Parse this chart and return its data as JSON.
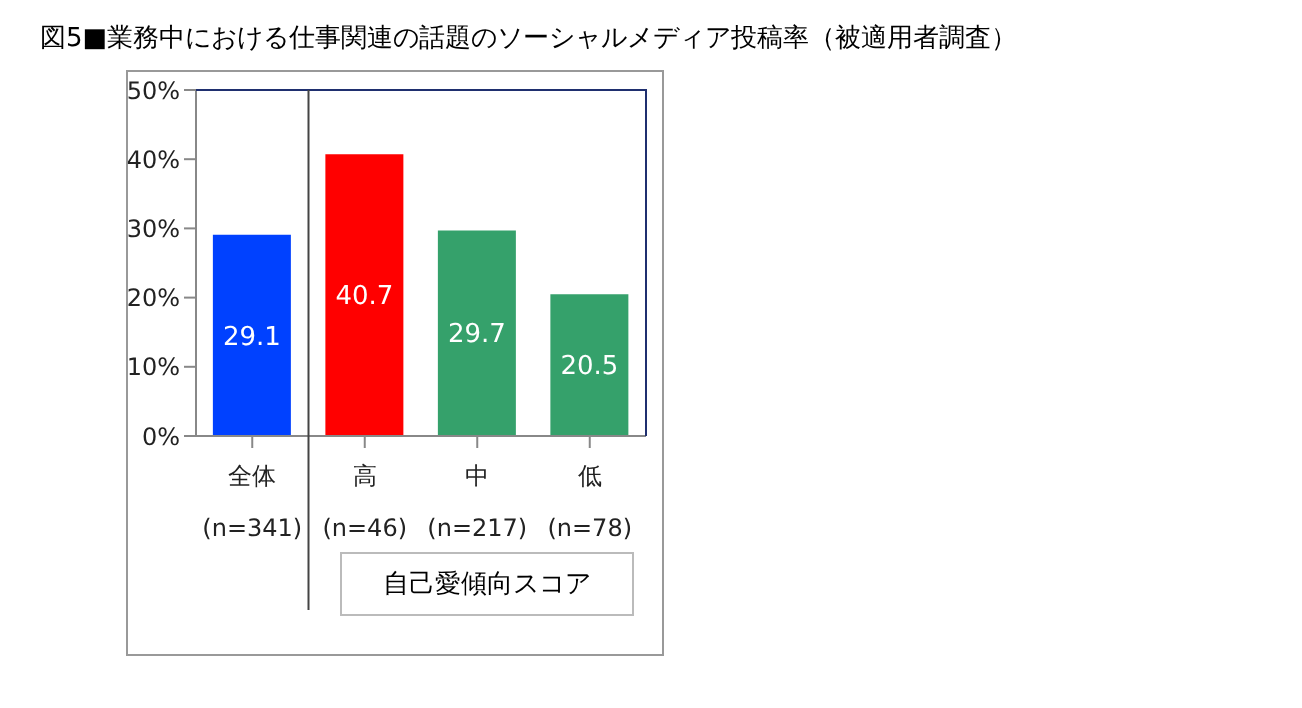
{
  "chart_data": {
    "type": "bar",
    "title": "図5■業務中における仕事関連の話題のソーシャルメディア投稿率（被適用者調査）",
    "xlabel": "自己愛傾向スコア",
    "categories": [
      "全体\n(n=341)",
      "高\n(n=46)",
      "中\n(n=217)",
      "低\n(n=78)"
    ],
    "values": [
      29.1,
      40.7,
      29.7,
      20.5
    ],
    "colors": [
      "#0041ff",
      "#ff0000",
      "#35a16b",
      "#35a16b"
    ],
    "ylim": [
      0,
      50
    ],
    "yticks": [
      {
        "value": 0,
        "label": "0%"
      },
      {
        "value": 10,
        "label": "10%"
      },
      {
        "value": 20,
        "label": "20%"
      },
      {
        "value": 30,
        "label": "30%"
      },
      {
        "value": 40,
        "label": "40%"
      },
      {
        "value": 50,
        "label": "50%"
      }
    ],
    "data_labels": true,
    "grid": false,
    "legend": false
  }
}
